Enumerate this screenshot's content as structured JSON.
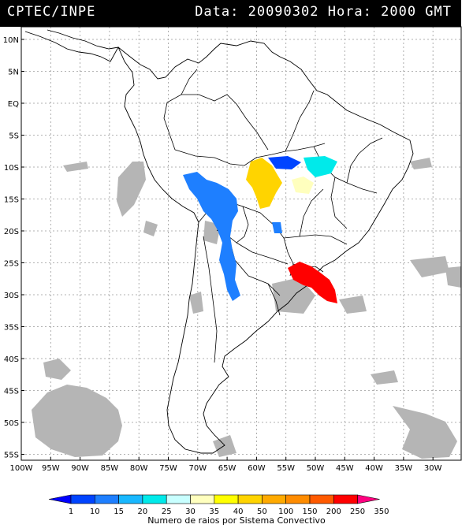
{
  "header": {
    "left": "CPTEC/INPE",
    "right": "Data: 20090302 Hora: 2000 GMT"
  },
  "lat_labels": [
    "10N",
    "5N",
    "EQ",
    "5S",
    "10S",
    "15S",
    "20S",
    "25S",
    "30S",
    "35S",
    "40S",
    "45S",
    "50S",
    "55S"
  ],
  "lon_labels": [
    "100W",
    "95W",
    "90W",
    "85W",
    "80W",
    "75W",
    "70W",
    "65W",
    "60W",
    "55W",
    "50W",
    "45W",
    "40W",
    "35W",
    "30W"
  ],
  "legend": {
    "title": "Numero de raios por Sistema Convectivo",
    "values": [
      "1",
      "10",
      "15",
      "20",
      "25",
      "30",
      "35",
      "40",
      "50",
      "100",
      "150",
      "200",
      "250",
      "350"
    ],
    "colors": [
      "#0000ff",
      "#0044ff",
      "#1e7fff",
      "#19b8ff",
      "#00eaea",
      "#c8ffff",
      "#ffffbe",
      "#ffff00",
      "#ffd400",
      "#ffaa00",
      "#ff8c00",
      "#ff5a00",
      "#ff0000",
      "#ff0080"
    ]
  }
}
